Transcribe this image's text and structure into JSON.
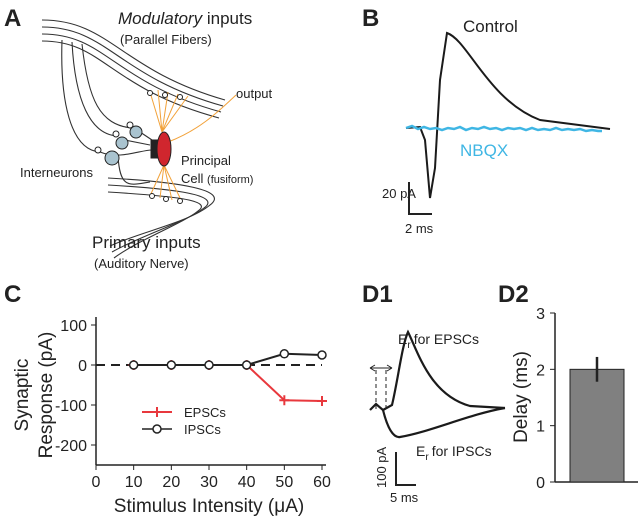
{
  "panels": {
    "a": "A",
    "b": "B",
    "c": "C",
    "d1": "D1",
    "d2": "D2"
  },
  "diagram": {
    "modulatory": "Modulatory",
    "inputs": "inputs",
    "parallel_fibers": "(Parallel Fibers)",
    "output": "output",
    "interneurons": "Interneurons",
    "principal": "Principal",
    "cell": "Cell",
    "fusiform": "(fusiform)",
    "primary_inputs": "Primary inputs",
    "auditory_nerve": "(Auditory Nerve)"
  },
  "traces_b": {
    "control": "Control",
    "nbqx": "NBQX",
    "scale_y": "20 pA",
    "scale_x": "2 ms"
  },
  "traces_d1": {
    "e": "E",
    "r": "r",
    "epsc": "for EPSCs",
    "ipsc": "for IPSCs",
    "scale_y": "100 pA",
    "scale_x": "5 ms"
  },
  "chart_data": [
    {
      "type": "line",
      "xlabel": "Stimulus Intensity  (μA)",
      "ylabel": [
        "Synaptic",
        "Response (pA)"
      ],
      "x": [
        10,
        20,
        30,
        40,
        50,
        60
      ],
      "series": [
        {
          "name": "EPSCs",
          "color": "#e8383d",
          "marker": "plus",
          "values": [
            0,
            0,
            0,
            0,
            -88,
            -90
          ]
        },
        {
          "name": "IPSCs",
          "color": "#222222",
          "marker": "circle",
          "values": [
            0,
            0,
            0,
            0,
            28,
            25
          ]
        }
      ],
      "xlim": [
        0,
        60
      ],
      "xticks": [
        0,
        10,
        20,
        30,
        40,
        50,
        60
      ],
      "ylim": [
        -250,
        100
      ],
      "yticks": [
        100,
        0,
        -100,
        -200
      ]
    },
    {
      "type": "bar",
      "ylabel": "Delay (ms)",
      "values": [
        2
      ],
      "errors": [
        0.22
      ],
      "color": "#808080",
      "ylim": [
        0,
        3
      ],
      "yticks": [
        0,
        1,
        2,
        3
      ]
    }
  ]
}
